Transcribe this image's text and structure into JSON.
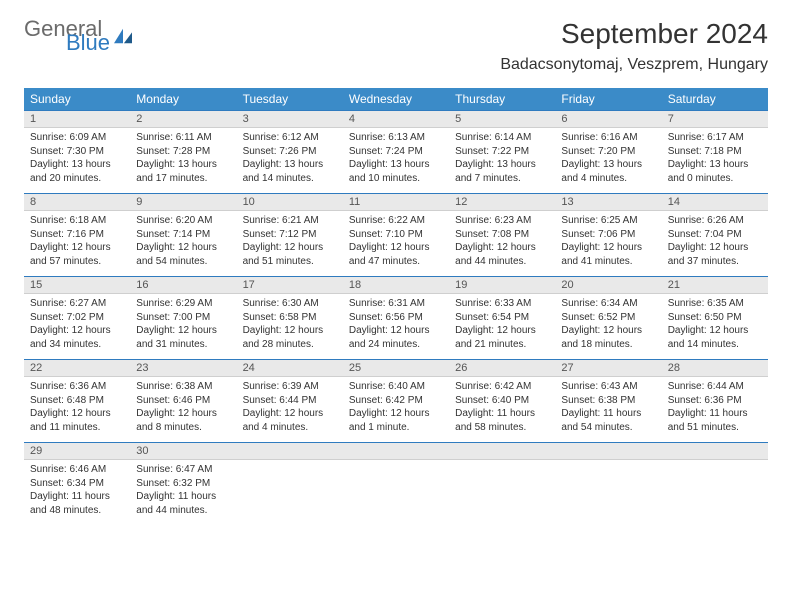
{
  "logo": {
    "text1": "General",
    "text2": "Blue"
  },
  "title": "September 2024",
  "location": "Badacsonytomaj, Veszprem, Hungary",
  "colors": {
    "header_bg": "#3b8bc8",
    "header_text": "#ffffff",
    "daynum_bg": "#e9e9e9",
    "daynum_border_top": "#2f7bbf",
    "logo_gray": "#6b6b6b",
    "logo_blue": "#2f7bbf",
    "body_text": "#333333"
  },
  "day_names": [
    "Sunday",
    "Monday",
    "Tuesday",
    "Wednesday",
    "Thursday",
    "Friday",
    "Saturday"
  ],
  "weeks": [
    [
      {
        "n": "1",
        "sr": "6:09 AM",
        "ss": "7:30 PM",
        "dl": "13 hours and 20 minutes."
      },
      {
        "n": "2",
        "sr": "6:11 AM",
        "ss": "7:28 PM",
        "dl": "13 hours and 17 minutes."
      },
      {
        "n": "3",
        "sr": "6:12 AM",
        "ss": "7:26 PM",
        "dl": "13 hours and 14 minutes."
      },
      {
        "n": "4",
        "sr": "6:13 AM",
        "ss": "7:24 PM",
        "dl": "13 hours and 10 minutes."
      },
      {
        "n": "5",
        "sr": "6:14 AM",
        "ss": "7:22 PM",
        "dl": "13 hours and 7 minutes."
      },
      {
        "n": "6",
        "sr": "6:16 AM",
        "ss": "7:20 PM",
        "dl": "13 hours and 4 minutes."
      },
      {
        "n": "7",
        "sr": "6:17 AM",
        "ss": "7:18 PM",
        "dl": "13 hours and 0 minutes."
      }
    ],
    [
      {
        "n": "8",
        "sr": "6:18 AM",
        "ss": "7:16 PM",
        "dl": "12 hours and 57 minutes."
      },
      {
        "n": "9",
        "sr": "6:20 AM",
        "ss": "7:14 PM",
        "dl": "12 hours and 54 minutes."
      },
      {
        "n": "10",
        "sr": "6:21 AM",
        "ss": "7:12 PM",
        "dl": "12 hours and 51 minutes."
      },
      {
        "n": "11",
        "sr": "6:22 AM",
        "ss": "7:10 PM",
        "dl": "12 hours and 47 minutes."
      },
      {
        "n": "12",
        "sr": "6:23 AM",
        "ss": "7:08 PM",
        "dl": "12 hours and 44 minutes."
      },
      {
        "n": "13",
        "sr": "6:25 AM",
        "ss": "7:06 PM",
        "dl": "12 hours and 41 minutes."
      },
      {
        "n": "14",
        "sr": "6:26 AM",
        "ss": "7:04 PM",
        "dl": "12 hours and 37 minutes."
      }
    ],
    [
      {
        "n": "15",
        "sr": "6:27 AM",
        "ss": "7:02 PM",
        "dl": "12 hours and 34 minutes."
      },
      {
        "n": "16",
        "sr": "6:29 AM",
        "ss": "7:00 PM",
        "dl": "12 hours and 31 minutes."
      },
      {
        "n": "17",
        "sr": "6:30 AM",
        "ss": "6:58 PM",
        "dl": "12 hours and 28 minutes."
      },
      {
        "n": "18",
        "sr": "6:31 AM",
        "ss": "6:56 PM",
        "dl": "12 hours and 24 minutes."
      },
      {
        "n": "19",
        "sr": "6:33 AM",
        "ss": "6:54 PM",
        "dl": "12 hours and 21 minutes."
      },
      {
        "n": "20",
        "sr": "6:34 AM",
        "ss": "6:52 PM",
        "dl": "12 hours and 18 minutes."
      },
      {
        "n": "21",
        "sr": "6:35 AM",
        "ss": "6:50 PM",
        "dl": "12 hours and 14 minutes."
      }
    ],
    [
      {
        "n": "22",
        "sr": "6:36 AM",
        "ss": "6:48 PM",
        "dl": "12 hours and 11 minutes."
      },
      {
        "n": "23",
        "sr": "6:38 AM",
        "ss": "6:46 PM",
        "dl": "12 hours and 8 minutes."
      },
      {
        "n": "24",
        "sr": "6:39 AM",
        "ss": "6:44 PM",
        "dl": "12 hours and 4 minutes."
      },
      {
        "n": "25",
        "sr": "6:40 AM",
        "ss": "6:42 PM",
        "dl": "12 hours and 1 minute."
      },
      {
        "n": "26",
        "sr": "6:42 AM",
        "ss": "6:40 PM",
        "dl": "11 hours and 58 minutes."
      },
      {
        "n": "27",
        "sr": "6:43 AM",
        "ss": "6:38 PM",
        "dl": "11 hours and 54 minutes."
      },
      {
        "n": "28",
        "sr": "6:44 AM",
        "ss": "6:36 PM",
        "dl": "11 hours and 51 minutes."
      }
    ],
    [
      {
        "n": "29",
        "sr": "6:46 AM",
        "ss": "6:34 PM",
        "dl": "11 hours and 48 minutes."
      },
      {
        "n": "30",
        "sr": "6:47 AM",
        "ss": "6:32 PM",
        "dl": "11 hours and 44 minutes."
      },
      null,
      null,
      null,
      null,
      null
    ]
  ],
  "labels": {
    "sunrise": "Sunrise:",
    "sunset": "Sunset:",
    "daylight": "Daylight:"
  }
}
